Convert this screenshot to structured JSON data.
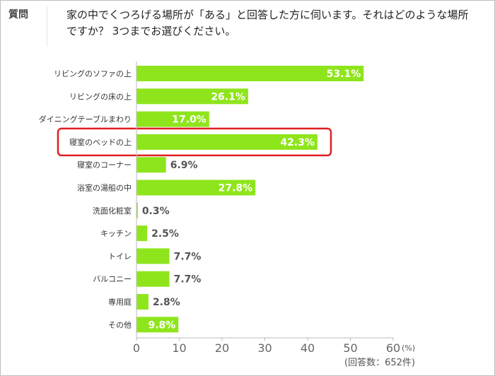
{
  "question_label": "質問",
  "question_text": "家の中でくつろげる場所が「ある」と回答した方に伺います。それはどのような場所ですか？ 3つまでお選びください。",
  "chart_data": {
    "type": "bar",
    "orientation": "horizontal",
    "categories": [
      "リビングのソファの上",
      "リビングの床の上",
      "ダイニングテーブルまわり",
      "寝室のベッドの上",
      "寝室のコーナー",
      "浴室の湯船の中",
      "洗面化粧室",
      "キッチン",
      "トイレ",
      "バルコニー",
      "専用庭",
      "その他"
    ],
    "values": [
      53.1,
      26.1,
      17.0,
      42.3,
      6.9,
      27.8,
      0.3,
      2.5,
      7.7,
      7.7,
      2.8,
      9.8
    ],
    "value_labels": [
      "53.1%",
      "26.1%",
      "17.0%",
      "42.3%",
      "6.9%",
      "27.8%",
      "0.3%",
      "2.5%",
      "7.7%",
      "7.7%",
      "2.8%",
      "9.8%"
    ],
    "xlim": [
      0,
      60
    ],
    "xticks": [
      "0",
      "10",
      "20",
      "30",
      "40",
      "50",
      "60"
    ],
    "unit_label": "(%)",
    "note": "(回答数：652件)",
    "highlighted_category": "寝室のベッドの上",
    "colors": {
      "bar": "#8fe51c",
      "highlight_border": "#e02020",
      "axis": "#bbbbbb"
    }
  }
}
